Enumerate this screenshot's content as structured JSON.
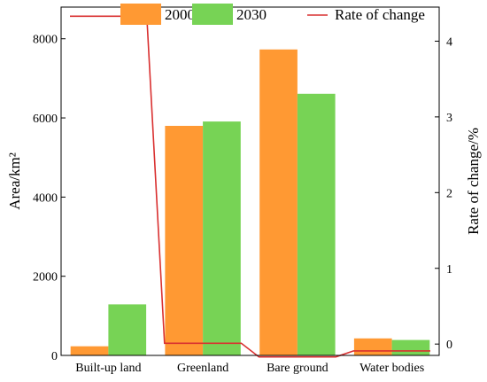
{
  "chart_data": {
    "type": "bar",
    "categories": [
      "Built-up land",
      "Greenland",
      "Bare ground",
      "Water bodies"
    ],
    "series": [
      {
        "name": "2000",
        "values": [
          230,
          5800,
          7730,
          430
        ],
        "color": "#ff9933",
        "axis": "left"
      },
      {
        "name": "2030",
        "values": [
          1290,
          5910,
          6610,
          390
        ],
        "color": "#77d355",
        "axis": "left"
      }
    ],
    "line_series": {
      "name": "Rate of change",
      "values": [
        4.33,
        0.01,
        -0.17,
        -0.09
      ],
      "color": "#d93030",
      "style": "step",
      "axis": "right"
    },
    "ylabel_left": "Area/km²",
    "ylabel_right": "Rate of change/%",
    "ylim_left": [
      0,
      8800
    ],
    "yticks_left": [
      "0",
      "2000",
      "4000",
      "6000",
      "8000"
    ],
    "ylim_right": [
      -0.15,
      4.45
    ],
    "yticks_right": [
      "0",
      "1",
      "2",
      "3",
      "4"
    ],
    "grid": false,
    "legend_placement": "top"
  }
}
